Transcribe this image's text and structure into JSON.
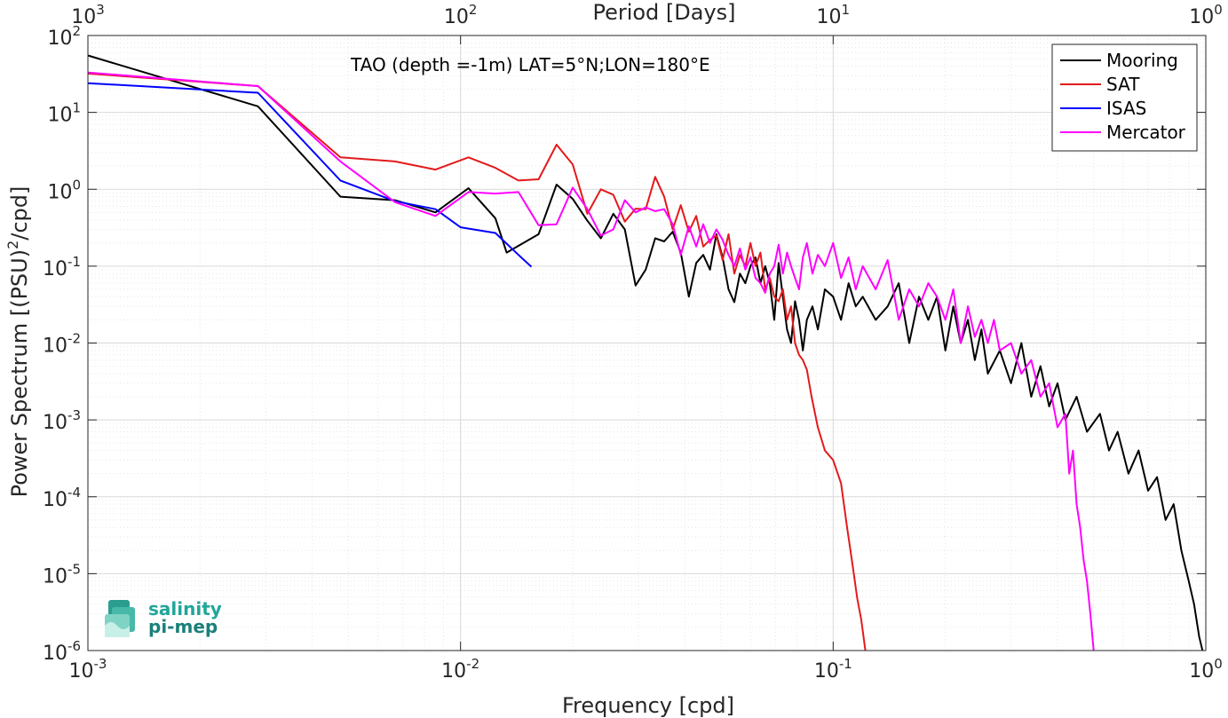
{
  "chart_data": {
    "type": "line",
    "title": "TAO (depth =-1m) LAT=5°N;LON=180°E",
    "xlabel": "Frequency [cpd]",
    "ylabel_main": "Power Spectrum [(PSU)",
    "ylabel_sup": "2",
    "ylabel_end": "/cpd]",
    "top_xlabel": "Period [Days]",
    "xscale": "log",
    "yscale": "log",
    "xlim": [
      0.001,
      1
    ],
    "ylim": [
      1e-06,
      100
    ],
    "grid": true,
    "legend_position": "top-right",
    "x_ticks": [
      {
        "value": 0.001,
        "base": "10",
        "exp": "-3"
      },
      {
        "value": 0.01,
        "base": "10",
        "exp": "-2"
      },
      {
        "value": 0.1,
        "base": "10",
        "exp": "-1"
      },
      {
        "value": 1,
        "base": "10",
        "exp": "0"
      }
    ],
    "top_ticks": [
      {
        "value": 0.001,
        "base": "10",
        "exp": "3"
      },
      {
        "value": 0.01,
        "base": "10",
        "exp": "2"
      },
      {
        "value": 0.1,
        "base": "10",
        "exp": "1"
      },
      {
        "value": 1,
        "base": "10",
        "exp": "0"
      }
    ],
    "y_ticks": [
      {
        "value": 100,
        "base": "10",
        "exp": "2"
      },
      {
        "value": 10,
        "base": "10",
        "exp": "1"
      },
      {
        "value": 1,
        "base": "10",
        "exp": "0"
      },
      {
        "value": 0.1,
        "base": "10",
        "exp": "-1"
      },
      {
        "value": 0.01,
        "base": "10",
        "exp": "-2"
      },
      {
        "value": 0.001,
        "base": "10",
        "exp": "-3"
      },
      {
        "value": 0.0001,
        "base": "10",
        "exp": "-4"
      },
      {
        "value": 1e-05,
        "base": "10",
        "exp": "-5"
      },
      {
        "value": 1e-06,
        "base": "10",
        "exp": "-6"
      }
    ],
    "series": [
      {
        "name": "Mooring",
        "color": "#000000",
        "points": [
          [
            0.001,
            55
          ],
          [
            0.00286,
            12
          ],
          [
            0.00476,
            0.8
          ],
          [
            0.00667,
            0.72
          ],
          [
            0.00857,
            0.5
          ],
          [
            0.0105,
            1.03
          ],
          [
            0.0124,
            0.42
          ],
          [
            0.0133,
            0.15
          ],
          [
            0.0162,
            0.26
          ],
          [
            0.0181,
            1.15
          ],
          [
            0.02,
            0.75
          ],
          [
            0.0219,
            0.39
          ],
          [
            0.0238,
            0.23
          ],
          [
            0.0257,
            0.48
          ],
          [
            0.0276,
            0.3
          ],
          [
            0.0295,
            0.056
          ],
          [
            0.0314,
            0.09
          ],
          [
            0.0333,
            0.23
          ],
          [
            0.0352,
            0.21
          ],
          [
            0.0371,
            0.28
          ],
          [
            0.039,
            0.15
          ],
          [
            0.041,
            0.04
          ],
          [
            0.0429,
            0.11
          ],
          [
            0.0448,
            0.14
          ],
          [
            0.0467,
            0.09
          ],
          [
            0.0486,
            0.26
          ],
          [
            0.0505,
            0.13
          ],
          [
            0.0524,
            0.05
          ],
          [
            0.0543,
            0.034
          ],
          [
            0.0562,
            0.08
          ],
          [
            0.0581,
            0.06
          ],
          [
            0.06,
            0.1
          ],
          [
            0.0619,
            0.13
          ],
          [
            0.0638,
            0.06
          ],
          [
            0.0657,
            0.1
          ],
          [
            0.0676,
            0.06
          ],
          [
            0.0695,
            0.02
          ],
          [
            0.0714,
            0.11
          ],
          [
            0.0733,
            0.04
          ],
          [
            0.0752,
            0.015
          ],
          [
            0.0771,
            0.01
          ],
          [
            0.079,
            0.035
          ],
          [
            0.081,
            0.02
          ],
          [
            0.0829,
            0.008
          ],
          [
            0.085,
            0.02
          ],
          [
            0.088,
            0.03
          ],
          [
            0.091,
            0.015
          ],
          [
            0.095,
            0.05
          ],
          [
            0.1,
            0.04
          ],
          [
            0.105,
            0.02
          ],
          [
            0.11,
            0.06
          ],
          [
            0.115,
            0.03
          ],
          [
            0.12,
            0.04
          ],
          [
            0.13,
            0.02
          ],
          [
            0.14,
            0.03
          ],
          [
            0.15,
            0.06
          ],
          [
            0.16,
            0.01
          ],
          [
            0.17,
            0.04
          ],
          [
            0.18,
            0.02
          ],
          [
            0.19,
            0.04
          ],
          [
            0.2,
            0.008
          ],
          [
            0.21,
            0.03
          ],
          [
            0.22,
            0.01
          ],
          [
            0.23,
            0.02
          ],
          [
            0.24,
            0.006
          ],
          [
            0.25,
            0.015
          ],
          [
            0.26,
            0.004
          ],
          [
            0.28,
            0.008
          ],
          [
            0.3,
            0.003
          ],
          [
            0.32,
            0.01
          ],
          [
            0.34,
            0.002
          ],
          [
            0.36,
            0.005
          ],
          [
            0.38,
            0.0015
          ],
          [
            0.4,
            0.003
          ],
          [
            0.42,
            0.001
          ],
          [
            0.45,
            0.002
          ],
          [
            0.48,
            0.0007
          ],
          [
            0.52,
            0.0012
          ],
          [
            0.55,
            0.0004
          ],
          [
            0.58,
            0.0007
          ],
          [
            0.62,
            0.0002
          ],
          [
            0.66,
            0.0004
          ],
          [
            0.7,
            0.00012
          ],
          [
            0.74,
            0.00018
          ],
          [
            0.78,
            5e-05
          ],
          [
            0.82,
            8e-05
          ],
          [
            0.86,
            2e-05
          ],
          [
            0.9,
            8e-06
          ],
          [
            0.93,
            4e-06
          ],
          [
            0.96,
            1.5e-06
          ],
          [
            0.98,
            1e-06
          ]
        ]
      },
      {
        "name": "SAT",
        "color": "#e31a1c",
        "points": [
          [
            0.001,
            32
          ],
          [
            0.00286,
            22
          ],
          [
            0.00476,
            2.6
          ],
          [
            0.00667,
            2.3
          ],
          [
            0.00857,
            1.8
          ],
          [
            0.0105,
            2.6
          ],
          [
            0.0124,
            1.9
          ],
          [
            0.0143,
            1.3
          ],
          [
            0.0162,
            1.35
          ],
          [
            0.0181,
            3.8
          ],
          [
            0.02,
            2.1
          ],
          [
            0.0219,
            0.48
          ],
          [
            0.0238,
            1.0
          ],
          [
            0.0257,
            0.85
          ],
          [
            0.0276,
            0.38
          ],
          [
            0.0295,
            0.56
          ],
          [
            0.0314,
            0.55
          ],
          [
            0.0333,
            1.45
          ],
          [
            0.0352,
            0.8
          ],
          [
            0.0371,
            0.3
          ],
          [
            0.039,
            0.62
          ],
          [
            0.041,
            0.28
          ],
          [
            0.0429,
            0.45
          ],
          [
            0.0448,
            0.18
          ],
          [
            0.0467,
            0.22
          ],
          [
            0.0486,
            0.25
          ],
          [
            0.0505,
            0.12
          ],
          [
            0.0524,
            0.26
          ],
          [
            0.0543,
            0.08
          ],
          [
            0.0562,
            0.14
          ],
          [
            0.0581,
            0.1
          ],
          [
            0.06,
            0.2
          ],
          [
            0.0619,
            0.1
          ],
          [
            0.0638,
            0.15
          ],
          [
            0.0657,
            0.05
          ],
          [
            0.0676,
            0.07
          ],
          [
            0.0695,
            0.04
          ],
          [
            0.0714,
            0.035
          ],
          [
            0.0733,
            0.05
          ],
          [
            0.0752,
            0.02
          ],
          [
            0.0771,
            0.03
          ],
          [
            0.079,
            0.01
          ],
          [
            0.081,
            0.007
          ],
          [
            0.0829,
            0.006
          ],
          [
            0.085,
            0.0045
          ],
          [
            0.0875,
            0.002
          ],
          [
            0.091,
            0.0008
          ],
          [
            0.095,
            0.0004
          ],
          [
            0.1,
            0.0003
          ],
          [
            0.105,
            0.00015
          ],
          [
            0.109,
            4e-05
          ],
          [
            0.113,
            1.2e-05
          ],
          [
            0.116,
            4.8e-06
          ],
          [
            0.119,
            2.5e-06
          ],
          [
            0.122,
            1e-06
          ]
        ]
      },
      {
        "name": "ISAS",
        "color": "#0000ff",
        "points": [
          [
            0.001,
            24
          ],
          [
            0.00286,
            18
          ],
          [
            0.00476,
            1.3
          ],
          [
            0.00667,
            0.7
          ],
          [
            0.00857,
            0.55
          ],
          [
            0.01,
            0.32
          ],
          [
            0.0124,
            0.27
          ],
          [
            0.0143,
            0.14
          ],
          [
            0.0155,
            0.098
          ]
        ]
      },
      {
        "name": "Mercator",
        "color": "#ff00ff",
        "points": [
          [
            0.001,
            33
          ],
          [
            0.00286,
            22
          ],
          [
            0.00476,
            2.3
          ],
          [
            0.00667,
            0.68
          ],
          [
            0.00857,
            0.45
          ],
          [
            0.0105,
            0.92
          ],
          [
            0.0124,
            0.88
          ],
          [
            0.0143,
            0.92
          ],
          [
            0.0162,
            0.34
          ],
          [
            0.0181,
            0.35
          ],
          [
            0.02,
            1.05
          ],
          [
            0.0219,
            0.55
          ],
          [
            0.0238,
            0.25
          ],
          [
            0.0257,
            0.3
          ],
          [
            0.0276,
            0.72
          ],
          [
            0.0295,
            0.5
          ],
          [
            0.0314,
            0.58
          ],
          [
            0.0333,
            0.52
          ],
          [
            0.0352,
            0.55
          ],
          [
            0.0371,
            0.35
          ],
          [
            0.039,
            0.14
          ],
          [
            0.041,
            0.33
          ],
          [
            0.0429,
            0.18
          ],
          [
            0.0448,
            0.35
          ],
          [
            0.0467,
            0.2
          ],
          [
            0.0486,
            0.3
          ],
          [
            0.0505,
            0.22
          ],
          [
            0.0524,
            0.14
          ],
          [
            0.0543,
            0.1
          ],
          [
            0.0562,
            0.17
          ],
          [
            0.0581,
            0.09
          ],
          [
            0.06,
            0.13
          ],
          [
            0.0619,
            0.07
          ],
          [
            0.0638,
            0.06
          ],
          [
            0.0657,
            0.045
          ],
          [
            0.0676,
            0.08
          ],
          [
            0.0695,
            0.1
          ],
          [
            0.0714,
            0.19
          ],
          [
            0.0733,
            0.08
          ],
          [
            0.0752,
            0.15
          ],
          [
            0.0771,
            0.1
          ],
          [
            0.079,
            0.07
          ],
          [
            0.081,
            0.05
          ],
          [
            0.0829,
            0.13
          ],
          [
            0.085,
            0.2
          ],
          [
            0.088,
            0.08
          ],
          [
            0.091,
            0.14
          ],
          [
            0.095,
            0.1
          ],
          [
            0.1,
            0.2
          ],
          [
            0.105,
            0.07
          ],
          [
            0.11,
            0.13
          ],
          [
            0.115,
            0.05
          ],
          [
            0.12,
            0.1
          ],
          [
            0.13,
            0.05
          ],
          [
            0.14,
            0.12
          ],
          [
            0.15,
            0.02
          ],
          [
            0.16,
            0.05
          ],
          [
            0.17,
            0.03
          ],
          [
            0.18,
            0.06
          ],
          [
            0.19,
            0.04
          ],
          [
            0.2,
            0.02
          ],
          [
            0.21,
            0.05
          ],
          [
            0.22,
            0.01
          ],
          [
            0.23,
            0.03
          ],
          [
            0.24,
            0.012
          ],
          [
            0.25,
            0.02
          ],
          [
            0.26,
            0.01
          ],
          [
            0.27,
            0.02
          ],
          [
            0.28,
            0.008
          ],
          [
            0.3,
            0.01
          ],
          [
            0.32,
            0.004
          ],
          [
            0.34,
            0.006
          ],
          [
            0.36,
            0.002
          ],
          [
            0.38,
            0.003
          ],
          [
            0.4,
            0.0008
          ],
          [
            0.42,
            0.0012
          ],
          [
            0.43,
            0.0002
          ],
          [
            0.44,
            0.0004
          ],
          [
            0.45,
            8e-05
          ],
          [
            0.46,
            4e-05
          ],
          [
            0.47,
            1.5e-05
          ],
          [
            0.48,
            8e-06
          ],
          [
            0.49,
            3e-06
          ],
          [
            0.5,
            1e-06
          ]
        ]
      }
    ]
  },
  "logo": {
    "line1": "salinity",
    "line2": "pi-mep"
  }
}
